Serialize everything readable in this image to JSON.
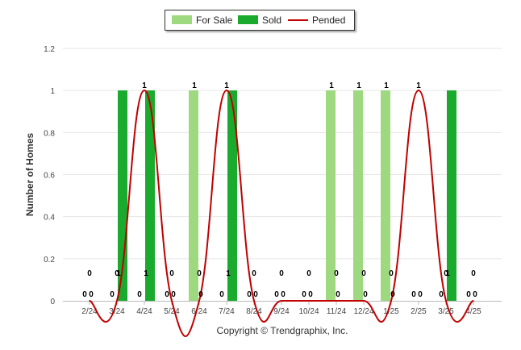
{
  "chart_data": {
    "type": "bar",
    "ylabel": "Number of Homes",
    "ylim": [
      0,
      1.2
    ],
    "yticks": [
      "0",
      "0.2",
      "0.4",
      "0.6",
      "0.8",
      "1",
      "1.2"
    ],
    "categories": [
      "2/24",
      "3/24",
      "4/24",
      "5/24",
      "6/24",
      "7/24",
      "8/24",
      "9/24",
      "10/24",
      "11/24",
      "12/24",
      "1/25",
      "2/25",
      "3/25",
      "4/25"
    ],
    "series": [
      {
        "name": "For Sale",
        "type": "bar",
        "color": "#9ed97f",
        "values": [
          0,
          0,
          0,
          0,
          1,
          0,
          0,
          0,
          0,
          1,
          1,
          1,
          0,
          0,
          0
        ]
      },
      {
        "name": "Sold",
        "type": "bar",
        "color": "#1aaa2e",
        "values": [
          0,
          1,
          1,
          0,
          0,
          1,
          0,
          0,
          0,
          0,
          0,
          0,
          0,
          1,
          0
        ]
      },
      {
        "name": "Pended",
        "type": "line",
        "color": "#c00000",
        "values": [
          0,
          0,
          1,
          0,
          0,
          1,
          0,
          0,
          0,
          0,
          0,
          0,
          1,
          0,
          0
        ]
      }
    ],
    "grid": true,
    "legend": "top-center"
  },
  "legend": {
    "items": [
      "For Sale",
      "Sold",
      "Pended"
    ]
  },
  "footer": {
    "copyright": "Copyright © Trendgraphix, Inc."
  }
}
